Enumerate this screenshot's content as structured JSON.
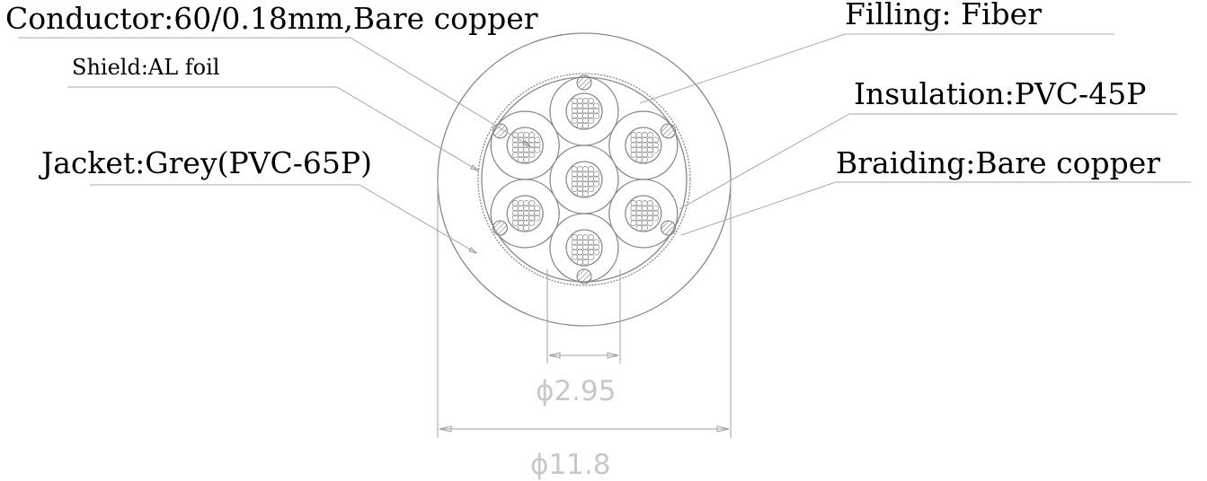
{
  "labels": {
    "conductor": "Conductor:60/0.18mm,Bare copper",
    "shield": "Shield:AL foil",
    "jacket": "Jacket:Grey(PVC-65P)",
    "filling": "Filling: Fiber",
    "insulation": "Insulation:PVC-45P",
    "braiding": "Braiding:Bare copper"
  },
  "dimensions": {
    "core_diameter": "ϕ2.95",
    "cable_diameter": "ϕ11.8"
  },
  "colors": {
    "text": "#000000",
    "outline": "#8a8a8a",
    "dimension_text": "#c8c8c8",
    "leader": "#a8a8a8"
  }
}
